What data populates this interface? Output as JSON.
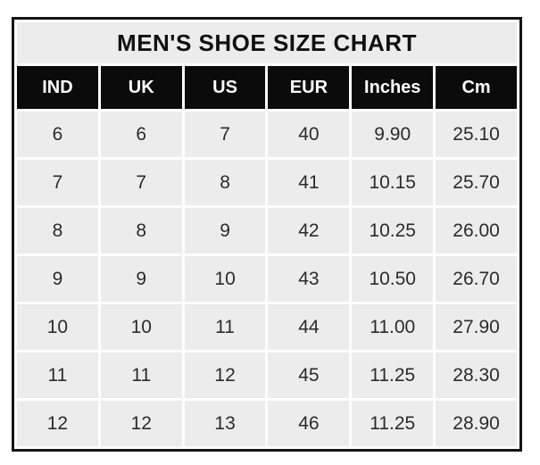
{
  "title": "MEN'S SHOE SIZE CHART",
  "colors": {
    "page_bg": "#ffffff",
    "outer_border": "#141414",
    "title_bg": "#edecec",
    "title_text": "#101010",
    "header_bg": "#0b0b0b",
    "header_text": "#fdfdfd",
    "cell_bg": "#edecec",
    "cell_text": "#2b2b2b",
    "grid_gap": "#fdfdfd"
  },
  "chart_data": {
    "type": "table",
    "title": "MEN'S SHOE SIZE CHART",
    "columns": [
      "IND",
      "UK",
      "US",
      "EUR",
      "Inches",
      "Cm"
    ],
    "rows": [
      [
        "6",
        "6",
        "7",
        "40",
        "9.90",
        "25.10"
      ],
      [
        "7",
        "7",
        "8",
        "41",
        "10.15",
        "25.70"
      ],
      [
        "8",
        "8",
        "9",
        "42",
        "10.25",
        "26.00"
      ],
      [
        "9",
        "9",
        "10",
        "43",
        "10.50",
        "26.70"
      ],
      [
        "10",
        "10",
        "11",
        "44",
        "11.00",
        "27.90"
      ],
      [
        "11",
        "11",
        "12",
        "45",
        "11.25",
        "28.30"
      ],
      [
        "12",
        "12",
        "13",
        "46",
        "11.25",
        "28.90"
      ]
    ]
  }
}
